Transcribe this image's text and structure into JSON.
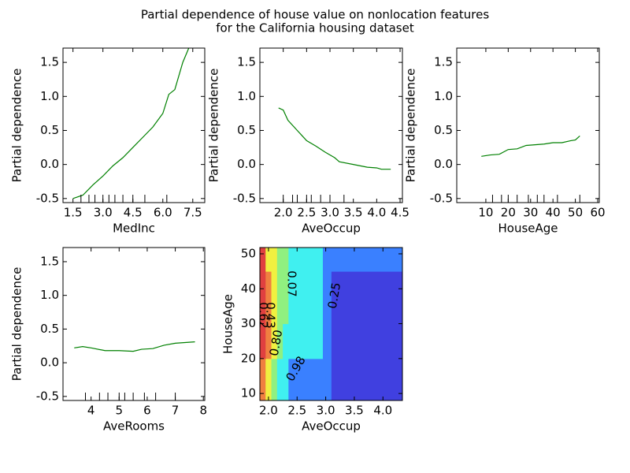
{
  "title_lines": [
    "Partial dependence of house value on nonlocation features",
    "for the California housing dataset"
  ],
  "chart_data": [
    {
      "type": "line",
      "xlabel": "MedInc",
      "ylabel": "Partial dependence",
      "color": "#008000",
      "x": [
        1.5,
        2.0,
        2.5,
        3.0,
        3.5,
        4.0,
        4.5,
        5.0,
        5.5,
        6.0,
        6.3,
        6.6,
        7.0,
        7.3
      ],
      "values": [
        -0.5,
        -0.45,
        -0.3,
        -0.17,
        -0.02,
        0.1,
        0.25,
        0.4,
        0.55,
        0.75,
        1.03,
        1.1,
        1.5,
        1.71
      ],
      "deciles": [
        1.9,
        2.3,
        2.6,
        3.0,
        3.3,
        3.6,
        4.0,
        4.5,
        5.1,
        6.2
      ],
      "xlim": [
        1.0,
        8.1
      ],
      "ylim": [
        -0.56,
        1.71
      ],
      "xticks": [
        1.5,
        {
          "value": 3,
          "label": "3.0"
        },
        4.5,
        {
          "value": 6,
          "label": "6.0"
        },
        7.5
      ],
      "yticks": [
        -0.5,
        {
          "value": 0,
          "label": "0.0"
        },
        0.5,
        {
          "value": 1,
          "label": "1.0"
        },
        1.5
      ]
    },
    {
      "type": "line",
      "xlabel": "AveOccup",
      "ylabel": "Partial dependence",
      "color": "#008000",
      "x": [
        1.9,
        2.0,
        2.1,
        2.3,
        2.5,
        2.7,
        2.9,
        3.1,
        3.2,
        3.5,
        3.8,
        4.0,
        4.1,
        4.3
      ],
      "values": [
        0.83,
        0.8,
        0.65,
        0.5,
        0.35,
        0.27,
        0.18,
        0.1,
        0.04,
        0.0,
        -0.04,
        -0.05,
        -0.07,
        -0.07
      ],
      "deciles": [
        2.0,
        2.2,
        2.3,
        2.5,
        2.6,
        2.8,
        3.0,
        3.3
      ],
      "xlim": [
        1.5,
        4.55
      ],
      "ylim": [
        -0.56,
        1.71
      ],
      "xticks": [
        {
          "value": 2,
          "label": "2.0"
        },
        2.5,
        {
          "value": 3,
          "label": "3.0"
        },
        3.5,
        {
          "value": 4,
          "label": "4.0"
        },
        4.5
      ],
      "yticks": [
        -0.5,
        {
          "value": 0,
          "label": "0.0"
        },
        0.5,
        {
          "value": 1,
          "label": "1.0"
        },
        1.5
      ]
    },
    {
      "type": "line",
      "xlabel": "HouseAge",
      "ylabel": "Partial dependence",
      "color": "#008000",
      "x": [
        8,
        12,
        16,
        20,
        24,
        28,
        32,
        36,
        40,
        44,
        48,
        50,
        52
      ],
      "values": [
        0.12,
        0.14,
        0.15,
        0.22,
        0.23,
        0.28,
        0.29,
        0.3,
        0.32,
        0.32,
        0.35,
        0.36,
        0.42
      ],
      "deciles": [
        13,
        17,
        20,
        24,
        29,
        33,
        36,
        42,
        52
      ],
      "xlim": [
        -3,
        60.7
      ],
      "ylim": [
        -0.56,
        1.71
      ],
      "xticks": [
        10,
        20,
        30,
        40,
        50,
        60
      ],
      "yticks": [
        -0.5,
        {
          "value": 0,
          "label": "0.0"
        },
        0.5,
        {
          "value": 1,
          "label": "1.0"
        },
        1.5
      ]
    },
    {
      "type": "line",
      "xlabel": "AveRooms",
      "ylabel": "Partial dependence",
      "color": "#008000",
      "x": [
        3.4,
        3.7,
        4.0,
        4.5,
        5.0,
        5.5,
        5.8,
        6.2,
        6.6,
        7.0,
        7.7
      ],
      "values": [
        0.22,
        0.24,
        0.22,
        0.18,
        0.18,
        0.17,
        0.2,
        0.21,
        0.26,
        0.29,
        0.31
      ],
      "deciles": [
        3.8,
        4.3,
        4.6,
        5.0,
        5.2,
        5.5,
        5.9,
        6.3,
        7.0
      ],
      "xlim": [
        3.0,
        8.05
      ],
      "ylim": [
        -0.56,
        1.71
      ],
      "xticks": [
        4,
        5,
        6,
        7,
        8
      ],
      "yticks": [
        -0.5,
        {
          "value": 0,
          "label": "0.0"
        },
        0.5,
        {
          "value": 1,
          "label": "1.0"
        },
        1.5
      ]
    },
    {
      "type": "contour",
      "xlabel": "AveOccup",
      "ylabel": "HouseAge",
      "x_edges": [
        1.85,
        1.95,
        2.05,
        2.15,
        2.25,
        2.35,
        2.95,
        3.1,
        4.34
      ],
      "y_edges": [
        8,
        20,
        30,
        45,
        51.8
      ],
      "z": [
        [
          0.85,
          0.7,
          0.5,
          0.35,
          0.3,
          0.2,
          0.1,
          0.02
        ],
        [
          1.0,
          0.85,
          0.7,
          0.5,
          0.35,
          0.3,
          0.15,
          0.03
        ],
        [
          1.0,
          0.9,
          0.75,
          0.55,
          0.45,
          0.3,
          0.15,
          0.04
        ],
        [
          1.0,
          0.75,
          0.7,
          0.6,
          0.45,
          0.3,
          0.2,
          0.1
        ]
      ],
      "levels": [
        0.07,
        0.25,
        0.43,
        0.62,
        {
          "value": 0.8,
          "label": "0.80"
        },
        0.98
      ],
      "colors": [
        "#4040e0",
        "#3a80ff",
        "#40f0f0",
        "#90f080",
        "#f0f040",
        "#f08040",
        "#e04040"
      ],
      "xlim": [
        1.85,
        4.34
      ],
      "ylim": [
        8,
        51.8
      ],
      "xticks": [
        {
          "value": 2,
          "label": "2.0"
        },
        2.5,
        {
          "value": 3,
          "label": "3.0"
        },
        3.5,
        {
          "value": 4,
          "label": "4.0"
        }
      ],
      "yticks": [
        10,
        20,
        30,
        40,
        50
      ]
    }
  ]
}
